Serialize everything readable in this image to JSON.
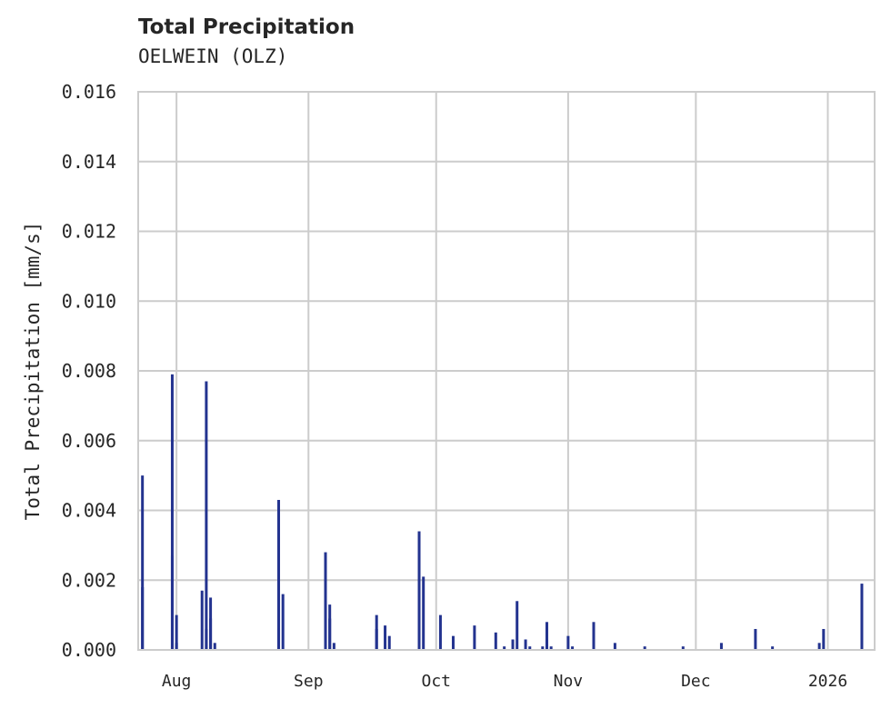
{
  "header": {
    "title": "Total Precipitation",
    "subtitle": "OELWEIN (OLZ)"
  },
  "chart_data": {
    "type": "bar",
    "title": "Total Precipitation",
    "subtitle": "OELWEIN (OLZ)",
    "xlabel": "",
    "ylabel": "Total Precipitation [mm/s]",
    "ylim": [
      0,
      0.016
    ],
    "yticks": [
      "0.000",
      "0.002",
      "0.004",
      "0.006",
      "0.008",
      "0.010",
      "0.012",
      "0.014",
      "0.016"
    ],
    "xticks": [
      "Aug",
      "Sep",
      "Oct",
      "Nov",
      "Dec",
      "2026"
    ],
    "xrange": [
      "2025-07-23",
      "2026-01-12"
    ],
    "grid": true,
    "color": "#23338f",
    "series": [
      {
        "name": "Total Precipitation",
        "x": [
          "2025-07-24",
          "2025-07-24",
          "2025-07-25",
          "2025-07-31",
          "2025-07-31",
          "2025-08-01",
          "2025-08-01",
          "2025-08-07",
          "2025-08-08",
          "2025-08-08",
          "2025-08-09",
          "2025-08-09",
          "2025-08-10",
          "2025-08-25",
          "2025-08-25",
          "2025-08-26",
          "2025-09-05",
          "2025-09-05",
          "2025-09-06",
          "2025-09-06",
          "2025-09-07",
          "2025-09-17",
          "2025-09-17",
          "2025-09-19",
          "2025-09-20",
          "2025-09-27",
          "2025-09-28",
          "2025-10-02",
          "2025-10-05",
          "2025-10-10",
          "2025-10-15",
          "2025-10-17",
          "2025-10-19",
          "2025-10-20",
          "2025-10-22",
          "2025-10-23",
          "2025-10-26",
          "2025-10-27",
          "2025-10-27",
          "2025-10-28",
          "2025-11-01",
          "2025-11-02",
          "2025-11-07",
          "2025-11-12",
          "2025-11-19",
          "2025-11-28",
          "2025-12-07",
          "2025-12-15",
          "2025-12-19",
          "2025-12-30",
          "2025-12-31",
          "2026-01-09"
        ],
        "values": [
          0.0018,
          0.005,
          0.0,
          0.0079,
          0.0027,
          0.001,
          0.0002,
          0.0017,
          0.0077,
          0.0006,
          0.0015,
          0.0009,
          0.0002,
          0.0043,
          0.0006,
          0.0016,
          0.0028,
          0.0014,
          0.0009,
          0.0013,
          0.0002,
          0.0006,
          0.001,
          0.0007,
          0.0004,
          0.0034,
          0.0021,
          0.001,
          0.0004,
          0.0007,
          0.0005,
          0.0001,
          0.0003,
          0.0014,
          0.0003,
          0.0001,
          0.0001,
          0.0008,
          0.0003,
          0.0001,
          0.0004,
          0.0001,
          0.0008,
          0.0002,
          0.0001,
          0.0001,
          0.0002,
          0.0006,
          0.0001,
          0.0002,
          0.0006,
          0.0019
        ]
      }
    ]
  }
}
